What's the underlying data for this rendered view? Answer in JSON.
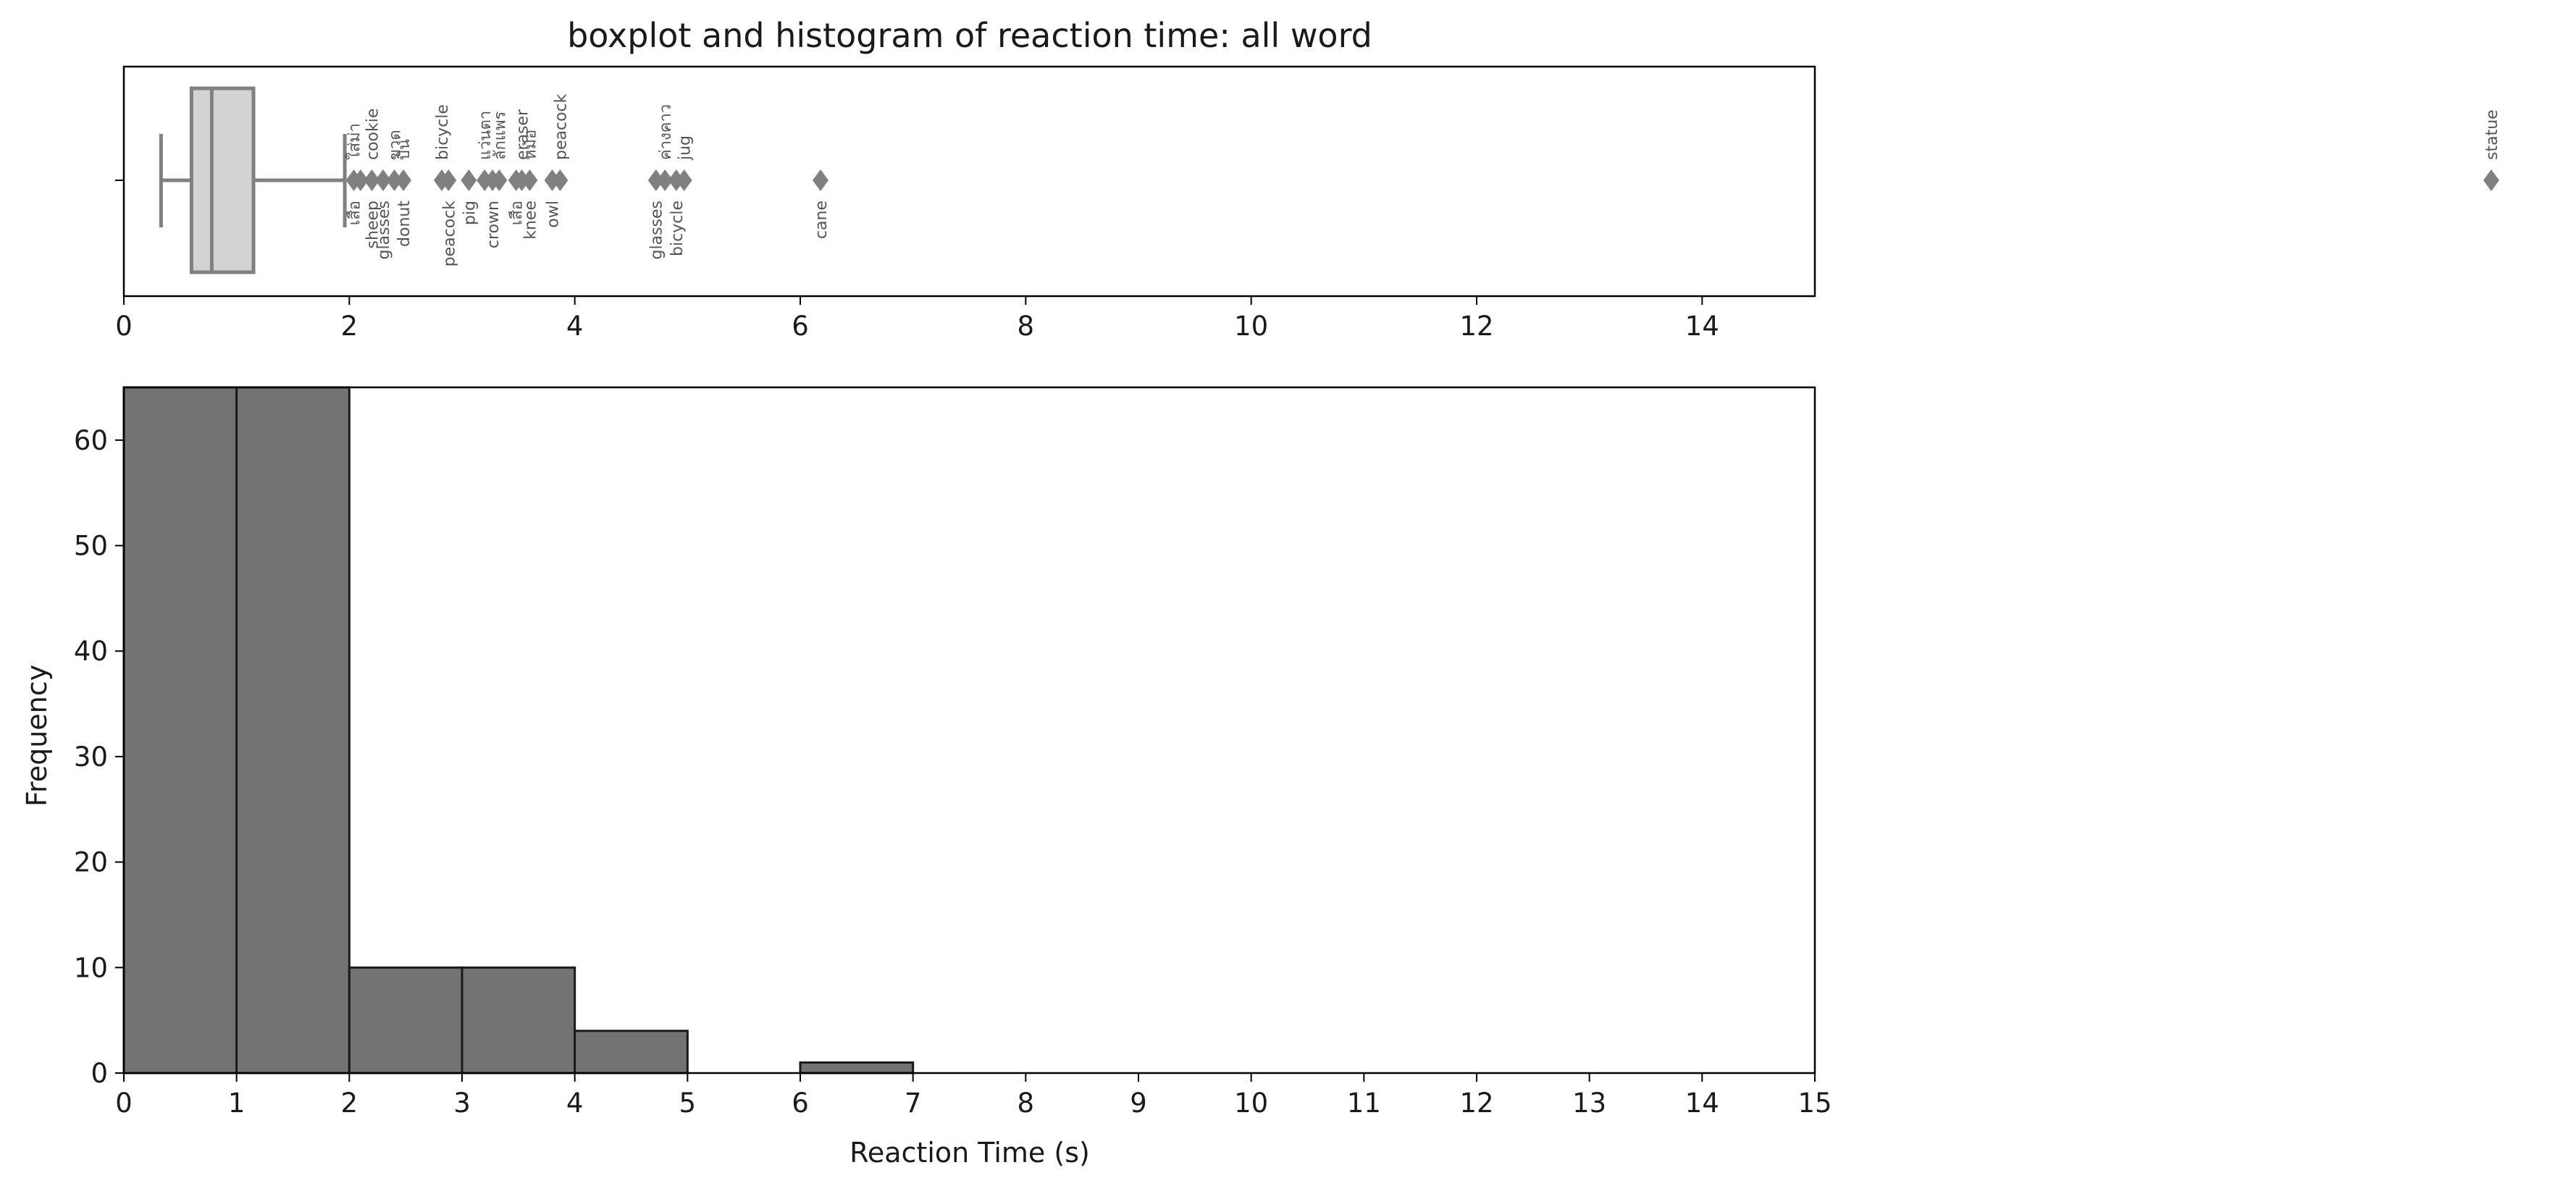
{
  "chart_data": [
    {
      "type": "boxplot",
      "title": "boxplot and histogram of reaction time: all word",
      "xlim": [
        0,
        15
      ],
      "x_ticks": [
        0,
        2,
        4,
        6,
        8,
        10,
        12,
        14
      ],
      "x_tick_labels": [
        "0",
        "2",
        "4",
        "6",
        "8",
        "10",
        "12",
        "14"
      ],
      "box": {
        "whisker_low": 0.33,
        "q1": 0.6,
        "median": 0.78,
        "q3": 1.15,
        "whisker_high": 1.96
      },
      "colors": {
        "box_fill": "#d3d3d3",
        "box_edge": "#808080",
        "outlier": "#808080"
      },
      "outliers": [
        {
          "x": 2.04,
          "label_above": "ใส่ม่า",
          "label_below": "เสือ"
        },
        {
          "x": 2.1,
          "label_above": "",
          "label_below": ""
        },
        {
          "x": 2.2,
          "label_above": "cookie",
          "label_below": "sheep"
        },
        {
          "x": 2.3,
          "label_above": "",
          "label_below": "glasses"
        },
        {
          "x": 2.4,
          "label_above": "ขวด",
          "label_below": ""
        },
        {
          "x": 2.48,
          "label_above": "บิน",
          "label_below": "donut"
        },
        {
          "x": 2.82,
          "label_above": "bicycle",
          "label_below": ""
        },
        {
          "x": 2.88,
          "label_above": "",
          "label_below": "peacock"
        },
        {
          "x": 3.06,
          "label_above": "",
          "label_below": "pig"
        },
        {
          "x": 3.2,
          "label_above": "แว่นตา",
          "label_below": ""
        },
        {
          "x": 3.27,
          "label_above": "",
          "label_below": "crown"
        },
        {
          "x": 3.33,
          "label_above": "ลักแพร",
          "label_below": ""
        },
        {
          "x": 3.48,
          "label_above": "",
          "label_below": "เสือ"
        },
        {
          "x": 3.53,
          "label_above": "eraser",
          "label_below": ""
        },
        {
          "x": 3.6,
          "label_above": "หม้อ",
          "label_below": "knee"
        },
        {
          "x": 3.8,
          "label_above": "",
          "label_below": "owl"
        },
        {
          "x": 3.87,
          "label_above": "peacock",
          "label_below": ""
        },
        {
          "x": 4.72,
          "label_above": "",
          "label_below": "glasses"
        },
        {
          "x": 4.8,
          "label_above": "ค่างคาว",
          "label_below": ""
        },
        {
          "x": 4.9,
          "label_above": "",
          "label_below": "bicycle"
        },
        {
          "x": 4.97,
          "label_above": "jug",
          "label_below": ""
        },
        {
          "x": 6.18,
          "label_above": "",
          "label_below": "cane"
        },
        {
          "x": 21.0,
          "label_above": "statue",
          "label_below": ""
        }
      ]
    },
    {
      "type": "bar",
      "xlabel": "Reaction Time (s)",
      "ylabel": "Frequency",
      "xlim": [
        0,
        15
      ],
      "ylim": [
        0,
        65
      ],
      "x_ticks": [
        0,
        1,
        2,
        3,
        4,
        5,
        6,
        7,
        8,
        9,
        10,
        11,
        12,
        13,
        14,
        15
      ],
      "x_tick_labels": [
        "0",
        "1",
        "2",
        "3",
        "4",
        "5",
        "6",
        "7",
        "8",
        "9",
        "10",
        "11",
        "12",
        "13",
        "14",
        "15"
      ],
      "y_ticks": [
        0,
        10,
        20,
        30,
        40,
        50,
        60
      ],
      "y_tick_labels": [
        "0",
        "10",
        "20",
        "30",
        "40",
        "50",
        "60"
      ],
      "bin_edges": [
        0,
        1,
        2,
        3,
        4,
        5,
        6,
        7,
        8,
        9,
        10,
        11,
        12,
        13,
        14,
        15
      ],
      "values": [
        65,
        65,
        10,
        10,
        4,
        0,
        1,
        0,
        0,
        0,
        0,
        0,
        0,
        0,
        0
      ],
      "colors": {
        "bar_fill": "#737373",
        "bar_edge": "#1a1a1a"
      }
    }
  ]
}
